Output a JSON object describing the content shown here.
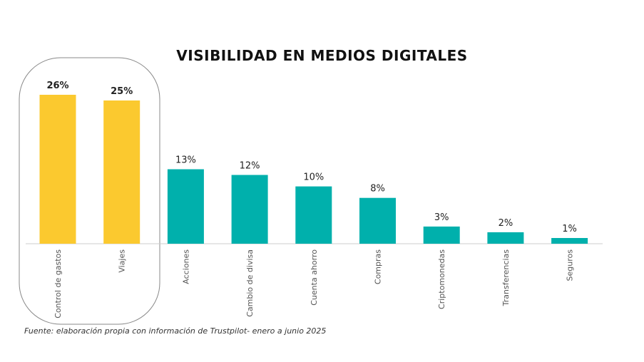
{
  "chart_data": {
    "type": "bar",
    "title": "VISIBILIDAD EN MEDIOS DIGITALES",
    "categories": [
      "Control de gastos",
      "Viajes",
      "Acciones",
      "Cambio de divisa",
      "Cuenta ahorro",
      "Compras",
      "Criptomonedas",
      "Transferencias",
      "Seguros"
    ],
    "values": [
      26,
      25,
      13,
      12,
      10,
      8,
      3,
      2,
      1
    ],
    "value_labels": [
      "26%",
      "25%",
      "13%",
      "12%",
      "10%",
      "8%",
      "3%",
      "2%",
      "1%"
    ],
    "highlighted": [
      true,
      true,
      false,
      false,
      false,
      false,
      false,
      false,
      false
    ],
    "ylim": [
      0,
      26
    ],
    "grid": false,
    "legend": "none",
    "xlabel": "",
    "ylabel": ""
  },
  "colors": {
    "highlight_bar": "#FBC92F",
    "bar": "#00B0AC",
    "baseline": "#cccccc",
    "highlight_frame": "#888888"
  },
  "source_note": "Fuente: elaboración propia con información de Trustpilot- enero a junio 2025"
}
